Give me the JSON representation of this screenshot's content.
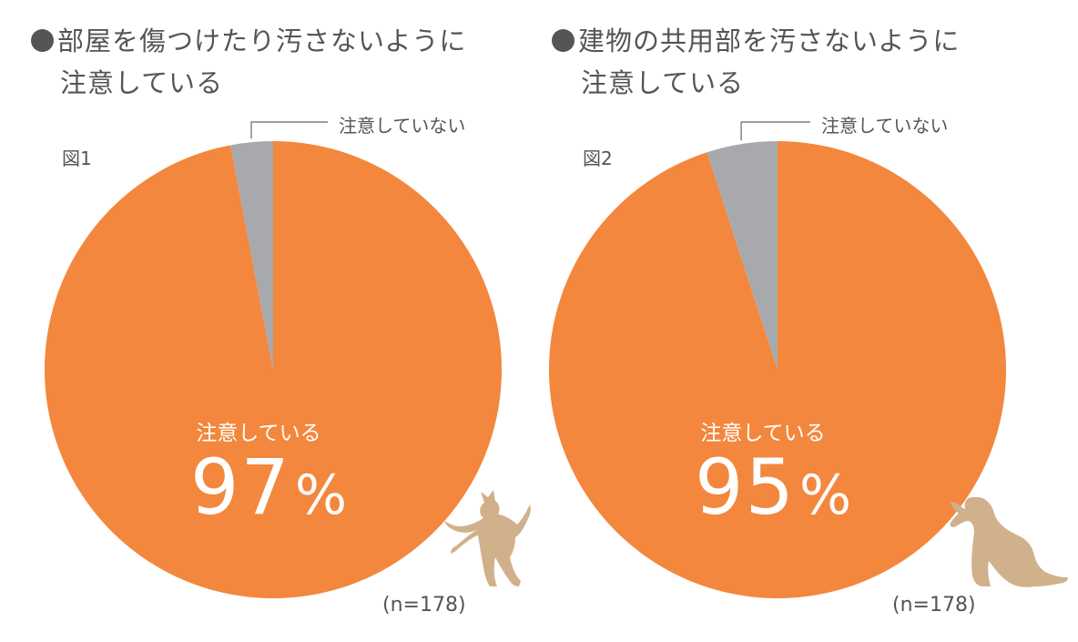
{
  "chart_data": [
    {
      "type": "pie",
      "title_line1": "部屋を傷つけたり汚さないように",
      "title_line2": "注意している",
      "figure_label": "図1",
      "slices": [
        {
          "label": "注意していない",
          "value": 3,
          "color": "#a8a9ad"
        },
        {
          "label": "注意している",
          "value": 97,
          "color": "#f3873d"
        }
      ],
      "main_label": "注意している",
      "percent_value": "97",
      "percent_sign": "%",
      "sample": "(n=178)",
      "start": "12 o'clock",
      "direction": "counterclockwise for small slice"
    },
    {
      "type": "pie",
      "title_line1": "建物の共用部を汚さないように",
      "title_line2": "注意している",
      "figure_label": "図2",
      "slices": [
        {
          "label": "注意していない",
          "value": 5,
          "color": "#a8a9ad"
        },
        {
          "label": "注意している",
          "value": 95,
          "color": "#f3873d"
        }
      ],
      "main_label": "注意している",
      "percent_value": "95",
      "percent_sign": "%",
      "sample": "(n=178)",
      "start": "12 o'clock",
      "direction": "counterclockwise for small slice"
    }
  ],
  "decor": {
    "pet_color": "#d1b08c",
    "pet1_icon": "cat-icon",
    "pet2_icon": "dog-icon"
  }
}
